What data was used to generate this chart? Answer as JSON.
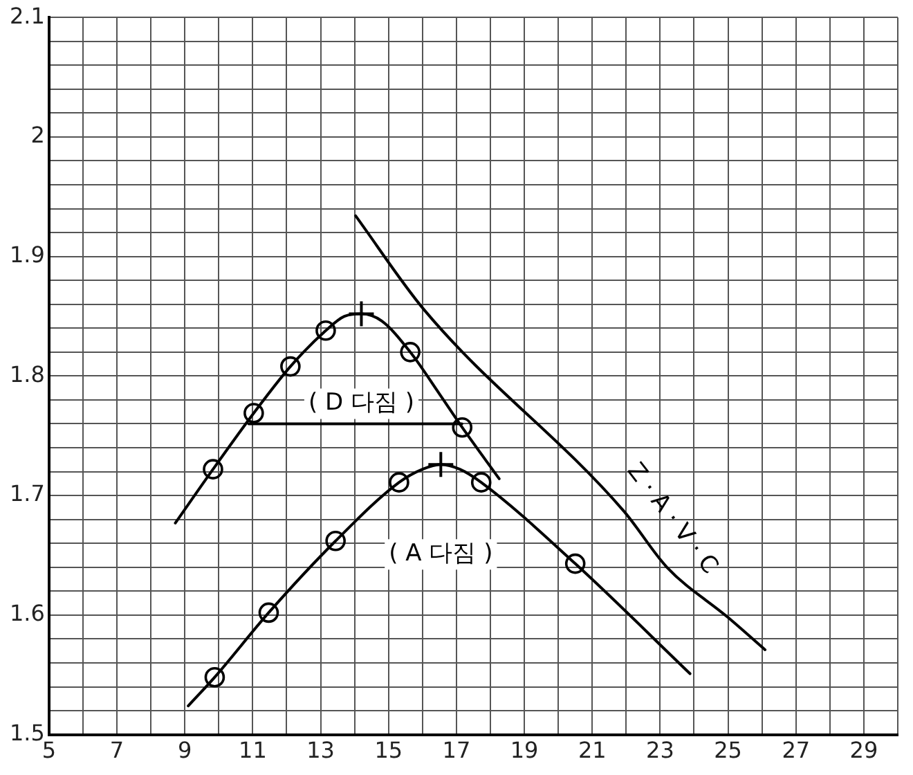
{
  "chart_data": {
    "type": "scatter",
    "xlim": [
      5,
      30
    ],
    "ylim": [
      1.5,
      2.1
    ],
    "xticks": [
      5,
      {
        "value": 6,
        "label": null
      },
      7,
      {
        "value": 8,
        "label": null
      },
      9,
      {
        "value": 10,
        "label": null
      },
      11,
      {
        "value": 12,
        "label": null
      },
      13,
      {
        "value": 14,
        "label": null
      },
      15,
      {
        "value": 16,
        "label": null
      },
      17,
      {
        "value": 18,
        "label": null
      },
      19,
      {
        "value": 20,
        "label": null
      },
      21,
      {
        "value": 22,
        "label": null
      },
      23,
      {
        "value": 24,
        "label": null
      },
      25,
      {
        "value": 26,
        "label": null
      },
      27,
      {
        "value": 28,
        "label": null
      },
      29,
      {
        "value": 30,
        "label": null
      }
    ],
    "yticks": [
      1.5,
      {
        "value": 1.52,
        "label": null
      },
      {
        "value": 1.54,
        "label": null
      },
      {
        "value": 1.56,
        "label": null
      },
      {
        "value": 1.58,
        "label": null
      },
      1.6,
      {
        "value": 1.62,
        "label": null
      },
      {
        "value": 1.64,
        "label": null
      },
      {
        "value": 1.66,
        "label": null
      },
      {
        "value": 1.68,
        "label": null
      },
      1.7,
      {
        "value": 1.72,
        "label": null
      },
      {
        "value": 1.74,
        "label": null
      },
      {
        "value": 1.76,
        "label": null
      },
      {
        "value": 1.78,
        "label": null
      },
      1.8,
      {
        "value": 1.82,
        "label": null
      },
      {
        "value": 1.84,
        "label": null
      },
      {
        "value": 1.86,
        "label": null
      },
      {
        "value": 1.88,
        "label": null
      },
      1.9,
      {
        "value": 1.92,
        "label": null
      },
      {
        "value": 1.94,
        "label": null
      },
      {
        "value": 1.96,
        "label": null
      },
      {
        "value": 1.98,
        "label": null
      },
      2.0,
      {
        "value": 2.02,
        "label": null
      },
      {
        "value": 2.04,
        "label": null
      },
      {
        "value": 2.06,
        "label": null
      },
      {
        "value": 2.08,
        "label": null
      },
      2.1
    ],
    "grid": true,
    "legend": false,
    "line_style": "solid",
    "series": [
      {
        "type": "line",
        "name": "( D 다짐 )",
        "color": "#000000",
        "marker": "none",
        "x": [
          8.72,
          9.83,
          11.03,
          12.11,
          13.15,
          13.7,
          14.2,
          14.8,
          15.64,
          16.5,
          17.17,
          18.26
        ],
        "values": [
          1.677,
          1.722,
          1.769,
          1.808,
          1.838,
          1.85,
          1.852,
          1.846,
          1.82,
          1.785,
          1.757,
          1.714
        ]
      },
      {
        "color": "#000000",
        "marker": "circle",
        "x": [
          9.83,
          11.03,
          12.11,
          13.15,
          15.64,
          17.17
        ],
        "values": [
          1.722,
          1.769,
          1.808,
          1.838,
          1.82,
          1.757
        ]
      },
      {
        "color": "#000000",
        "marker": "cross",
        "x": [
          14.2
        ],
        "values": [
          1.852
        ]
      },
      {
        "type": "line",
        "color": "#000000",
        "marker": "none",
        "x": [
          10.88,
          17.16
        ],
        "values": [
          1.76,
          1.76
        ]
      },
      {
        "type": "line",
        "name": "( A 다짐 )",
        "color": "#000000",
        "marker": "none",
        "x": [
          9.1,
          9.88,
          11.47,
          13.44,
          15.31,
          16.0,
          16.54,
          17.1,
          17.73,
          20.5,
          23.88
        ],
        "values": [
          1.524,
          1.548,
          1.602,
          1.662,
          1.711,
          1.722,
          1.726,
          1.722,
          1.711,
          1.643,
          1.551
        ]
      },
      {
        "color": "#000000",
        "marker": "circle",
        "x": [
          9.88,
          11.47,
          13.44,
          15.31,
          17.73,
          20.5
        ],
        "values": [
          1.548,
          1.602,
          1.662,
          1.711,
          1.711,
          1.643
        ]
      },
      {
        "color": "#000000",
        "marker": "cross",
        "x": [
          16.54
        ],
        "values": [
          1.726
        ]
      },
      {
        "type": "line",
        "name": "Z · A · V · C",
        "color": "#000000",
        "marker": "none",
        "x": [
          14.03,
          16.06,
          21.93,
          23.2,
          25.0,
          26.09
        ],
        "values": [
          1.934,
          1.855,
          1.687,
          1.64,
          1.598,
          1.571
        ]
      }
    ]
  }
}
